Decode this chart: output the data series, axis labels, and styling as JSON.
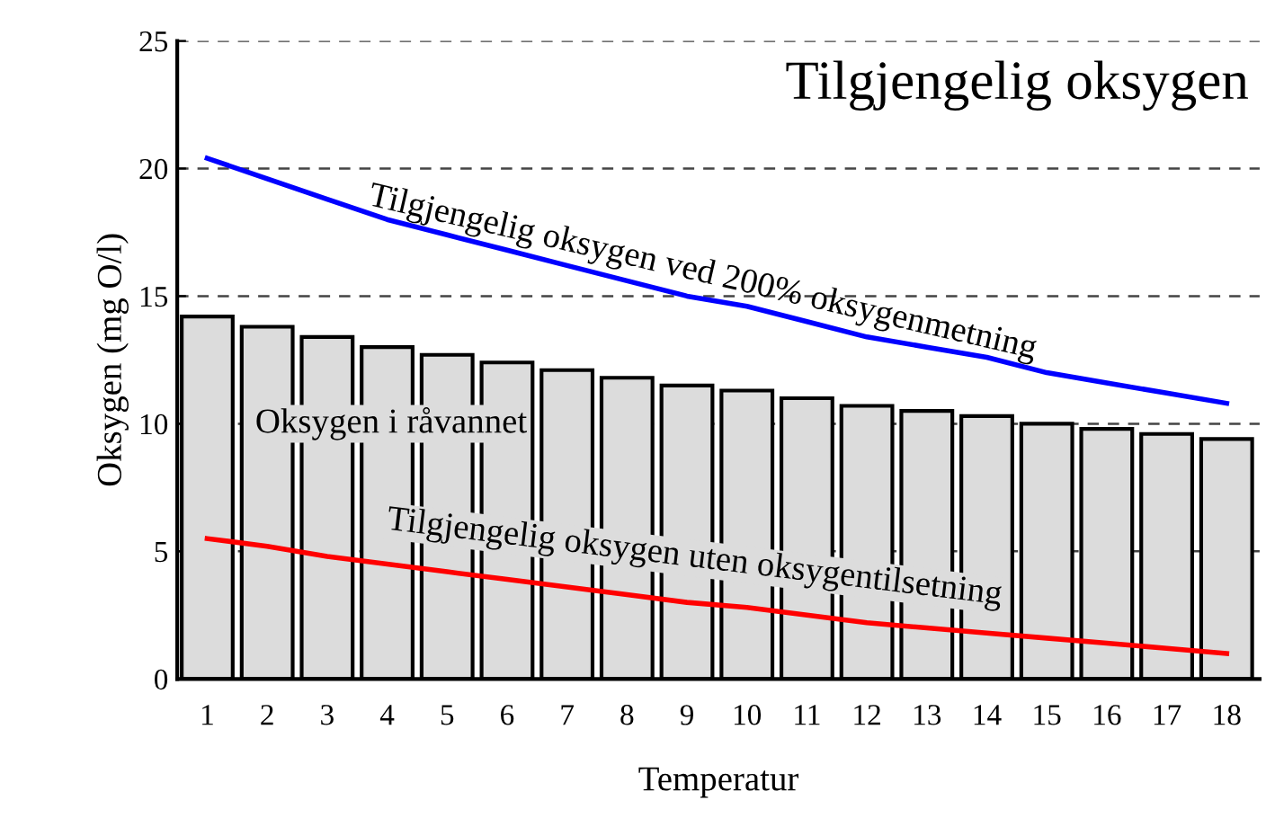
{
  "chart_data": {
    "type": "bar",
    "title": "Tilgjengelig oksygen",
    "xlabel": "Temperatur",
    "ylabel": "Oksygen (mg O/l)",
    "categories": [
      "1",
      "2",
      "3",
      "4",
      "5",
      "6",
      "7",
      "8",
      "9",
      "10",
      "11",
      "12",
      "13",
      "14",
      "15",
      "16",
      "17",
      "18"
    ],
    "series": [
      {
        "name": "Oksygen i råvannet",
        "color": "#dcdcdc",
        "values": [
          14.2,
          13.8,
          13.4,
          13.0,
          12.7,
          12.4,
          12.1,
          11.8,
          11.5,
          11.3,
          11.0,
          10.7,
          10.5,
          10.3,
          10.0,
          9.8,
          9.6,
          9.4
        ]
      },
      {
        "name": "Tilgjengelig oksygen ved 200% oksygenmetning",
        "type": "line",
        "color": "#0000ff",
        "values": [
          20.4,
          19.6,
          18.8,
          18.0,
          17.4,
          16.8,
          16.2,
          15.6,
          15.0,
          14.6,
          14.0,
          13.4,
          13.0,
          12.6,
          12.0,
          11.6,
          11.2,
          10.8
        ]
      },
      {
        "name": "Tilgjengelig oksygen uten oksygentilsetning",
        "type": "line",
        "color": "#ff0000",
        "values": [
          5.5,
          5.2,
          4.8,
          4.5,
          4.2,
          3.9,
          3.6,
          3.3,
          3.0,
          2.8,
          2.5,
          2.2,
          2.0,
          1.8,
          1.6,
          1.4,
          1.2,
          1.0
        ]
      }
    ],
    "ylim": [
      0,
      25
    ],
    "yticks": [
      0,
      5,
      10,
      15,
      20,
      25
    ],
    "grid": "y",
    "marker": "none",
    "line_style": "solid",
    "legend": false
  }
}
